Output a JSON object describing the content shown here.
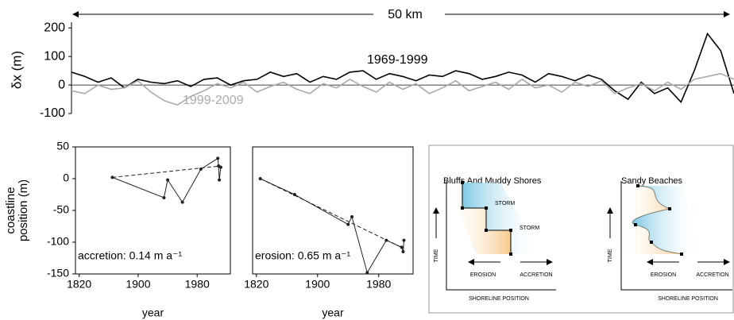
{
  "chart_data": [
    {
      "type": "line",
      "annotation": "50 km",
      "ylabel": "δx (m)",
      "x": [
        0,
        1,
        2,
        3,
        4,
        5,
        6,
        7,
        8,
        9,
        10,
        11,
        12,
        13,
        14,
        15,
        16,
        17,
        18,
        19,
        20,
        21,
        22,
        23,
        24,
        25,
        26,
        27,
        28,
        29,
        30,
        31,
        32,
        33,
        34,
        35,
        36,
        37,
        38,
        39,
        40,
        41,
        42,
        43,
        44,
        45,
        46,
        47,
        48,
        49,
        50
      ],
      "series": [
        {
          "name": "1969-1999",
          "color": "#000000",
          "values": [
            45,
            30,
            10,
            25,
            -10,
            20,
            10,
            5,
            15,
            -5,
            20,
            25,
            0,
            15,
            20,
            45,
            30,
            40,
            10,
            30,
            20,
            45,
            50,
            20,
            40,
            30,
            15,
            35,
            30,
            50,
            40,
            20,
            30,
            45,
            35,
            10,
            40,
            30,
            15,
            35,
            20,
            -20,
            -50,
            10,
            -30,
            -10,
            -60,
            50,
            180,
            120,
            -30
          ]
        },
        {
          "name": "1999-2009",
          "color": "#aaaaaa",
          "values": [
            -20,
            -30,
            0,
            -15,
            -10,
            15,
            -25,
            -55,
            -70,
            -40,
            -20,
            5,
            -10,
            10,
            -25,
            -5,
            10,
            -15,
            -30,
            5,
            -10,
            20,
            -5,
            -25,
            10,
            -15,
            5,
            -30,
            -10,
            15,
            -20,
            -5,
            10,
            -15,
            20,
            -10,
            0,
            -25,
            10,
            -5,
            15,
            -30,
            -10,
            5,
            -20,
            10,
            -15,
            20,
            30,
            40,
            20
          ]
        }
      ],
      "xlim": [
        0,
        50
      ],
      "ylim": [
        -100,
        220
      ],
      "yticks": [
        -100,
        0,
        100,
        200
      ]
    },
    {
      "type": "line",
      "ylabel": [
        "coastline",
        "position (m)"
      ],
      "xlabel": "year",
      "annotation": "accretion: 0.14 m a⁻¹",
      "x": [
        1865,
        1935,
        1940,
        1960,
        1985,
        2008,
        2009,
        2010,
        2012
      ],
      "values": [
        2,
        -30,
        -2,
        -37,
        15,
        32,
        20,
        -2,
        18
      ],
      "color": "#222222",
      "trend": {
        "x": [
          1865,
          2012
        ],
        "values": [
          2,
          20
        ]
      },
      "xlim": [
        1815,
        2025
      ],
      "xticks": [
        1820,
        1900,
        1980
      ],
      "ylim": [
        -150,
        50
      ],
      "yticks": [
        -150,
        -100,
        -50,
        0,
        50
      ]
    },
    {
      "type": "line",
      "xlabel": "year",
      "annotation": "erosion: 0.65 m a⁻¹",
      "x": [
        1825,
        1870,
        1940,
        1945,
        1965,
        1990,
        2010,
        2012,
        2013
      ],
      "values": [
        0,
        -25,
        -72,
        -60,
        -148,
        -97,
        -108,
        -115,
        -97
      ],
      "color": "#222222",
      "trend": {
        "x": [
          1825,
          2013
        ],
        "values": [
          0,
          -110
        ]
      },
      "xlim": [
        1815,
        2025
      ],
      "xticks": [
        1820,
        1900,
        1980
      ],
      "ylim": [
        -150,
        50
      ]
    }
  ],
  "diagram": {
    "panels": [
      {
        "title": "Bluffs And Muddy Shores",
        "storm": [
          "STORM",
          "STORM"
        ],
        "yaxis": "TIME",
        "left": "EROSION",
        "right": "ACCRETION",
        "xaxis": "SHORELINE POSITION"
      },
      {
        "title": "Sandy Beaches",
        "yaxis": "TIME",
        "left": "EROSION",
        "right": "ACCRETION",
        "xaxis": "SHORELINE POSITION"
      }
    ]
  }
}
